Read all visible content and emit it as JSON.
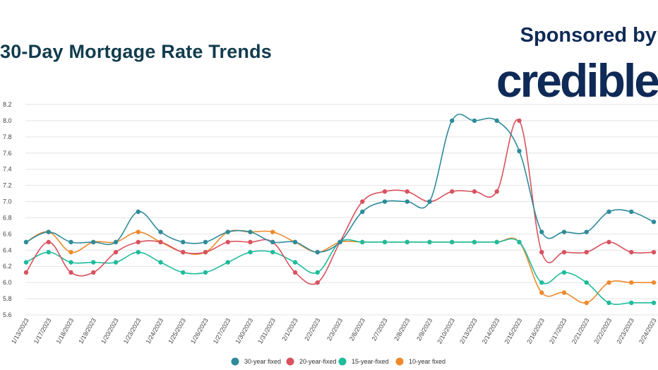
{
  "header": {
    "title": "30-Day Mortgage Rate Trends",
    "sponsor_label": "Sponsored by",
    "sponsor_logo": "credible"
  },
  "colors": {
    "title": "#123c4e",
    "brand": "#0f2a57",
    "grid": "#e4e4e4"
  },
  "chart_data": {
    "type": "line",
    "title": "30-Day Mortgage Rate Trends",
    "xlabel": "",
    "ylabel": "",
    "ylim": [
      5.6,
      8.2
    ],
    "yticks": [
      5.6,
      5.8,
      6.0,
      6.2,
      6.4,
      6.6,
      6.8,
      7.0,
      7.2,
      7.4,
      7.6,
      7.8,
      8.0,
      8.2
    ],
    "grid": true,
    "legend_position": "bottom",
    "categories": [
      "1/13/2023",
      "1/17/2023",
      "1/18/2023",
      "1/19/2023",
      "1/20/2023",
      "1/23/2023",
      "1/24/2023",
      "1/25/2023",
      "1/26/2023",
      "1/27/2023",
      "1/30/2023",
      "1/31/2023",
      "2/1/2023",
      "2/2/2023",
      "2/3/2023",
      "2/6/2023",
      "2/7/2023",
      "2/8/2023",
      "2/9/2023",
      "2/10/2023",
      "2/13/2023",
      "2/14/2023",
      "2/15/2023",
      "2/16/2023",
      "2/17/2023",
      "2/21/2023",
      "2/22/2023",
      "2/23/2023",
      "2/24/2023"
    ],
    "series": [
      {
        "name": "30-year fixed",
        "color": "#2e8b9a",
        "values": [
          6.5,
          6.625,
          6.5,
          6.5,
          6.5,
          6.875,
          6.625,
          6.5,
          6.5,
          6.625,
          6.625,
          6.5,
          6.5,
          6.375,
          6.5,
          6.875,
          7.0,
          7.0,
          7.0,
          8.0,
          8.0,
          8.0,
          7.625,
          6.625,
          6.625,
          6.625,
          6.875,
          6.875,
          6.75
        ]
      },
      {
        "name": "20-year-fixed",
        "color": "#d9525e",
        "values": [
          6.125,
          6.5,
          6.125,
          6.125,
          6.375,
          6.5,
          6.5,
          6.375,
          6.375,
          6.5,
          6.5,
          6.5,
          6.125,
          6.0,
          6.5,
          7.0,
          7.125,
          7.125,
          7.0,
          7.125,
          7.125,
          7.125,
          8.0,
          6.375,
          6.375,
          6.375,
          6.5,
          6.375,
          6.375
        ]
      },
      {
        "name": "15-year-fixed",
        "color": "#1ebc9c",
        "values": [
          6.25,
          6.375,
          6.25,
          6.25,
          6.25,
          6.375,
          6.25,
          6.125,
          6.125,
          6.25,
          6.375,
          6.375,
          6.25,
          6.125,
          6.5,
          6.5,
          6.5,
          6.5,
          6.5,
          6.5,
          6.5,
          6.5,
          6.5,
          6.0,
          6.125,
          6.0,
          5.75,
          5.75,
          5.75
        ]
      },
      {
        "name": "10-year fixed",
        "color": "#ee8a2c",
        "values": [
          6.5,
          6.625,
          6.375,
          6.5,
          6.5,
          6.625,
          6.5,
          6.375,
          6.375,
          6.625,
          6.625,
          6.625,
          6.5,
          6.375,
          6.5,
          6.5,
          6.5,
          6.5,
          6.5,
          6.5,
          6.5,
          6.5,
          6.5,
          5.875,
          5.875,
          5.75,
          6.0,
          6.0,
          6.0
        ]
      }
    ]
  }
}
